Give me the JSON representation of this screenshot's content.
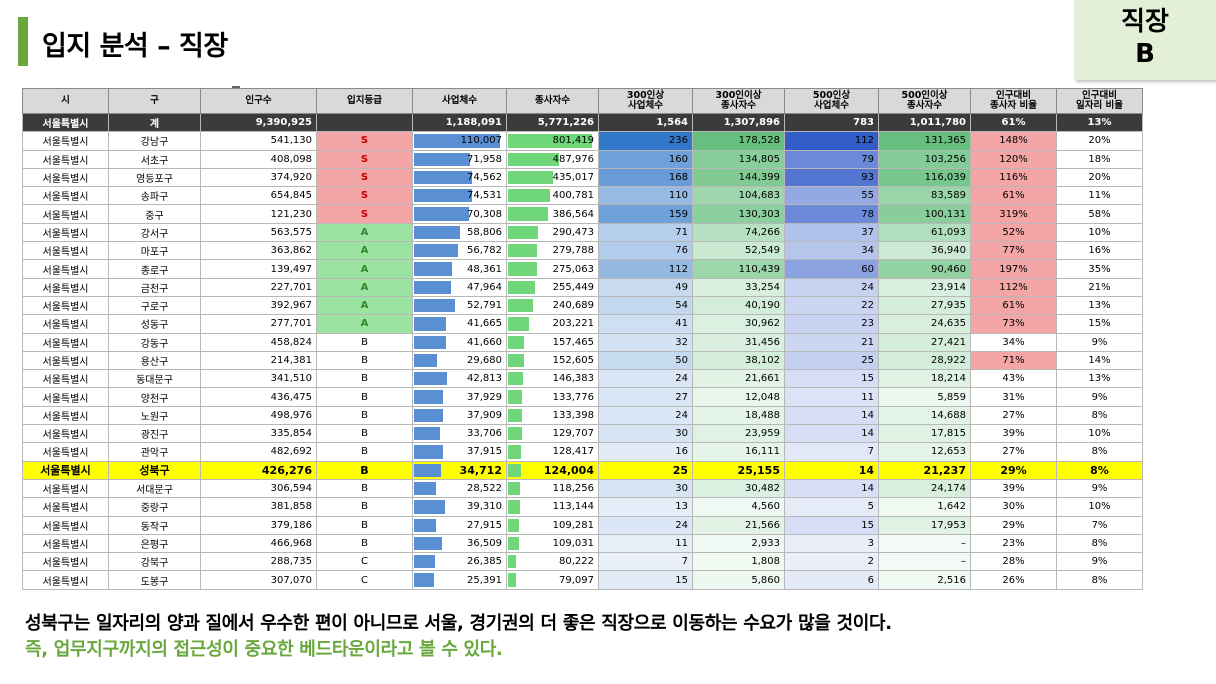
{
  "title": "입지 분석 – 직장",
  "corner": {
    "line1": "직장",
    "line2": "B"
  },
  "headers": [
    "시",
    "구",
    "인구수",
    "입지등급",
    "사업체수",
    "종사자수",
    "300인상\n사업체수",
    "300인이상\n종사자수",
    "500인상\n사업체수",
    "500인이상\n종사자수",
    "인구대비\n종사자 비율",
    "인구대비\n일자리 비율"
  ],
  "total": [
    "서울특별시",
    "계",
    "9,390,925",
    "",
    "1,188,091",
    "5,771,226",
    "1,564",
    "1,307,896",
    "783",
    "1,011,780",
    "61%",
    "13%"
  ],
  "rows": [
    [
      "서울특별시",
      "강남구",
      "541,130",
      "S",
      "110,007",
      "801,419",
      "236",
      "178,528",
      "112",
      "131,365",
      "148%",
      "20%"
    ],
    [
      "서울특별시",
      "서초구",
      "408,098",
      "S",
      "71,958",
      "487,976",
      "160",
      "134,805",
      "79",
      "103,256",
      "120%",
      "18%"
    ],
    [
      "서울특별시",
      "영등포구",
      "374,920",
      "S",
      "74,562",
      "435,017",
      "168",
      "144,399",
      "93",
      "116,039",
      "116%",
      "20%"
    ],
    [
      "서울특별시",
      "송파구",
      "654,845",
      "S",
      "74,531",
      "400,781",
      "110",
      "104,683",
      "55",
      "83,589",
      "61%",
      "11%"
    ],
    [
      "서울특별시",
      "중구",
      "121,230",
      "S",
      "70,308",
      "386,564",
      "159",
      "130,303",
      "78",
      "100,131",
      "319%",
      "58%"
    ],
    [
      "서울특별시",
      "강서구",
      "563,575",
      "A",
      "58,806",
      "290,473",
      "71",
      "74,266",
      "37",
      "61,093",
      "52%",
      "10%"
    ],
    [
      "서울특별시",
      "마포구",
      "363,862",
      "A",
      "56,782",
      "279,788",
      "76",
      "52,549",
      "34",
      "36,940",
      "77%",
      "16%"
    ],
    [
      "서울특별시",
      "종로구",
      "139,497",
      "A",
      "48,361",
      "275,063",
      "112",
      "110,439",
      "60",
      "90,460",
      "197%",
      "35%"
    ],
    [
      "서울특별시",
      "금천구",
      "227,701",
      "A",
      "47,964",
      "255,449",
      "49",
      "33,254",
      "24",
      "23,914",
      "112%",
      "21%"
    ],
    [
      "서울특별시",
      "구로구",
      "392,967",
      "A",
      "52,791",
      "240,689",
      "54",
      "40,190",
      "22",
      "27,935",
      "61%",
      "13%"
    ],
    [
      "서울특별시",
      "성동구",
      "277,701",
      "A",
      "41,665",
      "203,221",
      "41",
      "30,962",
      "23",
      "24,635",
      "73%",
      "15%"
    ],
    [
      "서울특별시",
      "강동구",
      "458,824",
      "B",
      "41,660",
      "157,465",
      "32",
      "31,456",
      "21",
      "27,421",
      "34%",
      "9%"
    ],
    [
      "서울특별시",
      "용산구",
      "214,381",
      "B",
      "29,680",
      "152,605",
      "50",
      "38,102",
      "25",
      "28,922",
      "71%",
      "14%"
    ],
    [
      "서울특별시",
      "동대문구",
      "341,510",
      "B",
      "42,813",
      "146,383",
      "24",
      "21,661",
      "15",
      "18,214",
      "43%",
      "13%"
    ],
    [
      "서울특별시",
      "양천구",
      "436,475",
      "B",
      "37,929",
      "133,776",
      "27",
      "12,048",
      "11",
      "5,859",
      "31%",
      "9%"
    ],
    [
      "서울특별시",
      "노원구",
      "498,976",
      "B",
      "37,909",
      "133,398",
      "24",
      "18,488",
      "14",
      "14,688",
      "27%",
      "8%"
    ],
    [
      "서울특별시",
      "광진구",
      "335,854",
      "B",
      "33,706",
      "129,707",
      "30",
      "23,959",
      "14",
      "17,815",
      "39%",
      "10%"
    ],
    [
      "서울특별시",
      "관악구",
      "482,692",
      "B",
      "37,915",
      "128,417",
      "16",
      "16,111",
      "7",
      "12,653",
      "27%",
      "8%"
    ],
    [
      "서울특별시",
      "성북구",
      "426,276",
      "B",
      "34,712",
      "124,004",
      "25",
      "25,155",
      "14",
      "21,237",
      "29%",
      "8%"
    ],
    [
      "서울특별시",
      "서대문구",
      "306,594",
      "B",
      "28,522",
      "118,256",
      "30",
      "30,482",
      "14",
      "24,174",
      "39%",
      "9%"
    ],
    [
      "서울특별시",
      "중랑구",
      "381,858",
      "B",
      "39,310",
      "113,144",
      "13",
      "4,560",
      "5",
      "1,642",
      "30%",
      "10%"
    ],
    [
      "서울특별시",
      "동작구",
      "379,186",
      "B",
      "27,915",
      "109,281",
      "24",
      "21,566",
      "15",
      "17,953",
      "29%",
      "7%"
    ],
    [
      "서울특별시",
      "은평구",
      "466,968",
      "B",
      "36,509",
      "109,031",
      "11",
      "2,933",
      "3",
      "–",
      "23%",
      "8%"
    ],
    [
      "서울특별시",
      "강북구",
      "288,735",
      "C",
      "26,385",
      "80,222",
      "7",
      "1,808",
      "2",
      "–",
      "28%",
      "9%"
    ],
    [
      "서울특별시",
      "도봉구",
      "307,070",
      "C",
      "25,391",
      "79,097",
      "15",
      "5,860",
      "6",
      "2,516",
      "26%",
      "8%"
    ]
  ],
  "highlight_index": 18,
  "footer": {
    "line1": "성북구는 일자리의 양과 질에서 우수한 편이 아니므로 서울, 경기권의 더 좋은 직장으로 이동하는 수요가 많을 것이다.",
    "line2": "즉, 업무지구까지의 접근성이 중요한 베드타운이라고 볼 수 있다."
  },
  "colors": {
    "accent_green": "#6aa83d",
    "grade_S": "#f4a6a6",
    "grade_A": "#9be3a0",
    "highlight": "#ffff00"
  }
}
